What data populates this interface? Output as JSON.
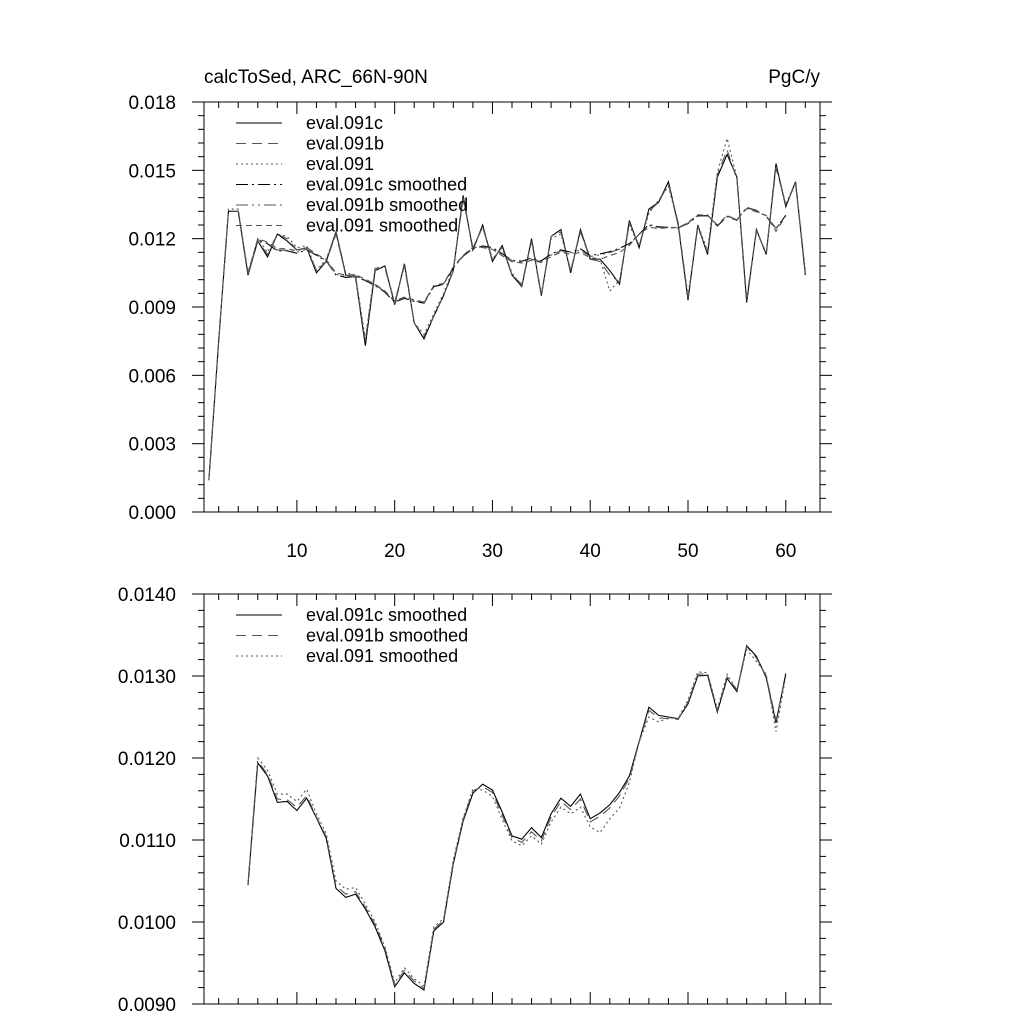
{
  "chart_data": [
    {
      "type": "line",
      "title": "calcToSed, ARC_66N-90N",
      "units": "PgC/y",
      "xlabel": "",
      "ylabel": "",
      "xlim": [
        0.5,
        63.5
      ],
      "ylim": [
        0.0,
        0.018
      ],
      "x_ticks": [
        10,
        20,
        30,
        40,
        50,
        60
      ],
      "x_tick_labels": [
        "10",
        "20",
        "30",
        "40",
        "50",
        "60"
      ],
      "y_ticks": [
        0.0,
        0.003,
        0.006,
        0.009,
        0.012,
        0.015,
        0.018
      ],
      "y_tick_labels": [
        "0.000",
        "0.003",
        "0.006",
        "0.009",
        "0.012",
        "0.015",
        "0.018"
      ],
      "grid": false,
      "legend_position": "top-left",
      "x": [
        1,
        2,
        3,
        4,
        5,
        6,
        7,
        8,
        9,
        10,
        11,
        12,
        13,
        14,
        15,
        16,
        17,
        18,
        19,
        20,
        21,
        22,
        23,
        24,
        25,
        26,
        27,
        28,
        29,
        30,
        31,
        32,
        33,
        34,
        35,
        36,
        37,
        38,
        39,
        40,
        41,
        42,
        43,
        44,
        45,
        46,
        47,
        48,
        49,
        50,
        51,
        52,
        53,
        54,
        55,
        56,
        57,
        58,
        59,
        60,
        61,
        62
      ],
      "series": [
        {
          "name": "eval.091c",
          "dash": "solid",
          "color": "#000000",
          "values": [
            0.0014,
            0.0075,
            0.0132,
            0.0132,
            0.0104,
            0.0119,
            0.0112,
            0.0122,
            0.0119,
            0.0115,
            0.0116,
            0.0105,
            0.011,
            0.0123,
            0.0104,
            0.0103,
            0.0073,
            0.0106,
            0.0108,
            0.0091,
            0.0109,
            0.0083,
            0.0076,
            0.0086,
            0.0095,
            0.0106,
            0.0139,
            0.0115,
            0.0126,
            0.011,
            0.0117,
            0.0104,
            0.0099,
            0.012,
            0.0095,
            0.0121,
            0.0124,
            0.0105,
            0.0124,
            0.0111,
            0.0111,
            0.0106,
            0.01,
            0.0128,
            0.0116,
            0.0133,
            0.0136,
            0.0145,
            0.0126,
            0.0093,
            0.0126,
            0.0113,
            0.0147,
            0.0157,
            0.0147,
            0.0092,
            0.0124,
            0.0113,
            0.0153,
            0.0134,
            0.0145,
            0.0104
          ]
        },
        {
          "name": "eval.091b",
          "dash": "10,6",
          "color": "#555555",
          "values": [
            0.0014,
            0.0075,
            0.0132,
            0.0132,
            0.0105,
            0.0119,
            0.0113,
            0.0122,
            0.012,
            0.0115,
            0.0116,
            0.0106,
            0.011,
            0.0122,
            0.0104,
            0.0103,
            0.0075,
            0.0107,
            0.0107,
            0.0092,
            0.0108,
            0.0083,
            0.0077,
            0.0086,
            0.0095,
            0.0106,
            0.0138,
            0.0116,
            0.0125,
            0.0111,
            0.0116,
            0.0104,
            0.01,
            0.0119,
            0.0095,
            0.0121,
            0.0123,
            0.0106,
            0.0123,
            0.0111,
            0.011,
            0.0104,
            0.0101,
            0.0127,
            0.0117,
            0.0132,
            0.0136,
            0.0144,
            0.0127,
            0.0094,
            0.0125,
            0.0114,
            0.0148,
            0.0159,
            0.0146,
            0.0094,
            0.0123,
            0.0114,
            0.0151,
            0.0135,
            0.0144,
            0.0105
          ]
        },
        {
          "name": "eval.091",
          "dash": "2,3",
          "color": "#555555",
          "values": [
            0.0014,
            0.0075,
            0.0133,
            0.0133,
            0.0105,
            0.012,
            0.0114,
            0.0122,
            0.0121,
            0.0116,
            0.0117,
            0.0106,
            0.0111,
            0.0123,
            0.0105,
            0.0104,
            0.0076,
            0.0107,
            0.0108,
            0.0092,
            0.0109,
            0.0083,
            0.0078,
            0.0087,
            0.0096,
            0.0107,
            0.0137,
            0.0116,
            0.0125,
            0.0111,
            0.0116,
            0.0105,
            0.0099,
            0.0119,
            0.0096,
            0.012,
            0.0122,
            0.0106,
            0.0123,
            0.0112,
            0.0111,
            0.0097,
            0.0102,
            0.0126,
            0.0117,
            0.0131,
            0.0137,
            0.0143,
            0.0126,
            0.0095,
            0.0126,
            0.0115,
            0.0149,
            0.0164,
            0.0147,
            0.0093,
            0.0124,
            0.0113,
            0.0152,
            0.0135,
            0.0145,
            0.0106
          ]
        },
        {
          "name": "eval.091c smoothed",
          "dash": "12,4,2,4",
          "color": "#000000",
          "values": [
            null,
            null,
            null,
            null,
            0.01045,
            0.01194,
            0.01178,
            0.01146,
            0.01147,
            0.01136,
            0.01151,
            0.01127,
            0.01102,
            0.01041,
            0.0103,
            0.01034,
            0.01016,
            0.00994,
            0.00965,
            0.00921,
            0.00938,
            0.00925,
            0.00917,
            0.00989,
            0.01,
            0.01071,
            0.01123,
            0.01157,
            0.01168,
            0.01161,
            0.01134,
            0.01105,
            0.01101,
            0.01115,
            0.01103,
            0.01132,
            0.01151,
            0.01141,
            0.01156,
            0.01126,
            0.01133,
            0.01143,
            0.01158,
            0.01178,
            0.0122,
            0.01262,
            0.01252,
            0.0125,
            0.01248,
            0.01266,
            0.013,
            0.01301,
            0.01256,
            0.01297,
            0.01281,
            0.01337,
            0.01324,
            0.01298,
            0.01243,
            0.01303,
            null,
            null
          ]
        },
        {
          "name": "eval.091b smoothed",
          "dash": "12,4,2,4,2,4",
          "color": "#555555",
          "values": [
            null,
            null,
            null,
            null,
            0.01046,
            0.01196,
            0.0118,
            0.0115,
            0.01149,
            0.0114,
            0.01154,
            0.01128,
            0.01104,
            0.01044,
            0.01034,
            0.01037,
            0.01018,
            0.00997,
            0.00968,
            0.00923,
            0.00941,
            0.00928,
            0.00919,
            0.00991,
            0.01002,
            0.01073,
            0.01125,
            0.0116,
            0.01165,
            0.01158,
            0.0113,
            0.01103,
            0.01097,
            0.0111,
            0.01099,
            0.01128,
            0.01147,
            0.01137,
            0.0115,
            0.01122,
            0.01129,
            0.01139,
            0.01154,
            0.01175,
            0.01219,
            0.01258,
            0.01249,
            0.01248,
            0.01247,
            0.01268,
            0.01302,
            0.01303,
            0.01258,
            0.01299,
            0.01283,
            0.01336,
            0.01322,
            0.013,
            0.01246,
            0.013,
            null,
            null
          ]
        },
        {
          "name": "eval.091 smoothed",
          "dash": "6,4",
          "color": "#555555",
          "values": [
            null,
            null,
            null,
            null,
            0.01048,
            0.012,
            0.01185,
            0.01156,
            0.01156,
            0.01147,
            0.01162,
            0.01132,
            0.01108,
            0.0105,
            0.0104,
            0.01042,
            0.01022,
            0.01,
            0.0097,
            0.00926,
            0.00944,
            0.00931,
            0.00922,
            0.00994,
            0.01004,
            0.01076,
            0.01127,
            0.01162,
            0.01161,
            0.01153,
            0.01125,
            0.01099,
            0.01093,
            0.01105,
            0.01095,
            0.01122,
            0.0114,
            0.01132,
            0.0114,
            0.01116,
            0.01109,
            0.01126,
            0.01139,
            0.0117,
            0.0122,
            0.0125,
            0.01244,
            0.01249,
            0.01248,
            0.01271,
            0.01305,
            0.01304,
            0.0126,
            0.01302,
            0.01283,
            0.01332,
            0.01318,
            0.01302,
            0.01232,
            0.013,
            null,
            null
          ]
        }
      ]
    },
    {
      "type": "line",
      "title": "",
      "xlabel": "",
      "ylabel": "",
      "xlim": [
        0.5,
        63.5
      ],
      "ylim": [
        0.009,
        0.014
      ],
      "x_ticks": [
        10,
        20,
        30,
        40,
        50,
        60
      ],
      "x_tick_labels": [],
      "y_ticks": [
        0.009,
        0.01,
        0.011,
        0.012,
        0.013,
        0.014
      ],
      "y_tick_labels": [
        "0.0090",
        "0.0100",
        "0.0110",
        "0.0120",
        "0.0130",
        "0.0140"
      ],
      "grid": false,
      "legend_position": "top-left",
      "x": [
        5,
        6,
        7,
        8,
        9,
        10,
        11,
        12,
        13,
        14,
        15,
        16,
        17,
        18,
        19,
        20,
        21,
        22,
        23,
        24,
        25,
        26,
        27,
        28,
        29,
        30,
        31,
        32,
        33,
        34,
        35,
        36,
        37,
        38,
        39,
        40,
        41,
        42,
        43,
        44,
        45,
        46,
        47,
        48,
        49,
        50,
        51,
        52,
        53,
        54,
        55,
        56,
        57,
        58,
        59,
        60
      ],
      "series": [
        {
          "name": "eval.091c smoothed",
          "dash": "solid",
          "color": "#000000",
          "values": [
            0.01045,
            0.01194,
            0.01178,
            0.01146,
            0.01147,
            0.01136,
            0.01151,
            0.01127,
            0.01102,
            0.01041,
            0.0103,
            0.01034,
            0.01016,
            0.00994,
            0.00965,
            0.00921,
            0.00938,
            0.00925,
            0.00917,
            0.00989,
            0.01,
            0.01071,
            0.01123,
            0.01157,
            0.01168,
            0.01161,
            0.01134,
            0.01105,
            0.01101,
            0.01115,
            0.01103,
            0.01132,
            0.01151,
            0.01141,
            0.01156,
            0.01126,
            0.01133,
            0.01143,
            0.01158,
            0.01178,
            0.0122,
            0.01262,
            0.01252,
            0.0125,
            0.01248,
            0.01266,
            0.013,
            0.01301,
            0.01256,
            0.01297,
            0.01281,
            0.01337,
            0.01324,
            0.01298,
            0.01243,
            0.01303
          ]
        },
        {
          "name": "eval.091b smoothed",
          "dash": "10,6",
          "color": "#555555",
          "values": [
            0.01046,
            0.01196,
            0.0118,
            0.0115,
            0.01149,
            0.0114,
            0.01154,
            0.01128,
            0.01104,
            0.01044,
            0.01034,
            0.01037,
            0.01018,
            0.00997,
            0.00968,
            0.00923,
            0.00941,
            0.00928,
            0.00919,
            0.00991,
            0.01002,
            0.01073,
            0.01125,
            0.0116,
            0.01165,
            0.01158,
            0.0113,
            0.01103,
            0.01097,
            0.0111,
            0.01099,
            0.01128,
            0.01147,
            0.01137,
            0.0115,
            0.01122,
            0.01129,
            0.01139,
            0.01154,
            0.01175,
            0.01219,
            0.01258,
            0.01249,
            0.01248,
            0.01247,
            0.01268,
            0.01302,
            0.01303,
            0.01258,
            0.01299,
            0.01283,
            0.01336,
            0.01322,
            0.013,
            0.01246,
            0.013
          ]
        },
        {
          "name": "eval.091 smoothed",
          "dash": "2,3",
          "color": "#555555",
          "values": [
            0.01048,
            0.012,
            0.01185,
            0.01156,
            0.01156,
            0.01147,
            0.01162,
            0.01132,
            0.01108,
            0.0105,
            0.0104,
            0.01042,
            0.01022,
            0.01,
            0.0097,
            0.00926,
            0.00944,
            0.00931,
            0.00922,
            0.00994,
            0.01004,
            0.01076,
            0.01127,
            0.01162,
            0.01161,
            0.01153,
            0.01125,
            0.01099,
            0.01093,
            0.01105,
            0.01095,
            0.01122,
            0.0114,
            0.01132,
            0.0114,
            0.01116,
            0.01109,
            0.01126,
            0.01139,
            0.0117,
            0.0122,
            0.0125,
            0.01244,
            0.01249,
            0.01248,
            0.01271,
            0.01305,
            0.01304,
            0.0126,
            0.01302,
            0.01283,
            0.01332,
            0.01318,
            0.01302,
            0.01232,
            0.013
          ]
        }
      ]
    }
  ]
}
